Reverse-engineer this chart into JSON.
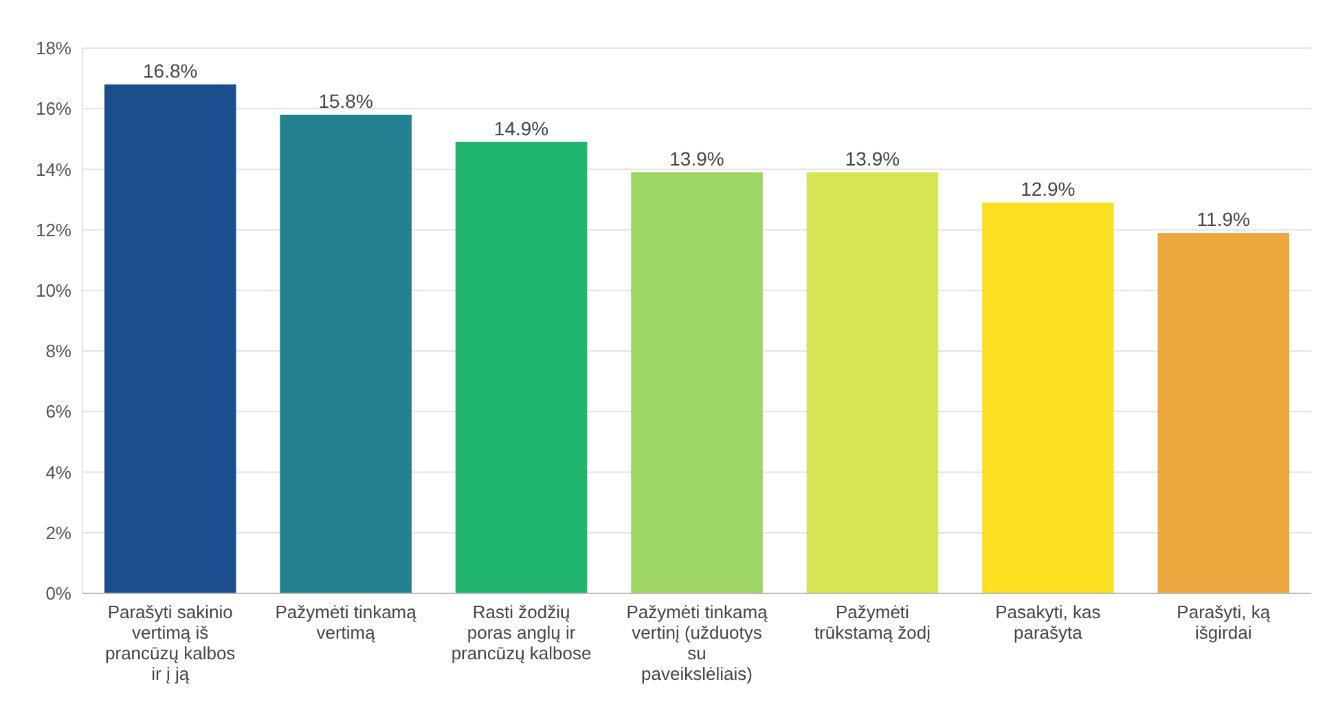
{
  "chart_data": {
    "type": "bar",
    "categories": [
      "Parašyti sakinio vertimą iš prancūzų kalbos ir į ją",
      "Pažymėti tinkamą vertimą",
      "Rasti žodžių poras anglų ir prancūzų kalbose",
      "Pažymėti tinkamą vertinį (užduotys su paveikslėliais)",
      "Pažymėti trūkstamą žodį",
      "Pasakyti, kas parašyta",
      "Parašyti, ką išgirdai"
    ],
    "values": [
      16.8,
      15.8,
      14.9,
      13.9,
      13.9,
      12.9,
      11.9
    ],
    "colors": [
      "#1a4e8f",
      "#23808f",
      "#1fb56c",
      "#9ed663",
      "#d6e553",
      "#fde021",
      "#eda73f"
    ],
    "value_labels": [
      "16.8%",
      "15.8%",
      "14.9%",
      "13.9%",
      "13.9%",
      "12.9%",
      "11.9%"
    ],
    "ylim": [
      0,
      18
    ],
    "yticks": [
      {
        "value": 0,
        "label": "0%"
      },
      {
        "value": 2,
        "label": "2%"
      },
      {
        "value": 4,
        "label": "4%"
      },
      {
        "value": 6,
        "label": "6%"
      },
      {
        "value": 8,
        "label": "8%"
      },
      {
        "value": 10,
        "label": "10%"
      },
      {
        "value": 12,
        "label": "12%"
      },
      {
        "value": 14,
        "label": "14%"
      },
      {
        "value": 16,
        "label": "16%"
      },
      {
        "value": 18,
        "label": "18%"
      }
    ],
    "grid": true
  }
}
